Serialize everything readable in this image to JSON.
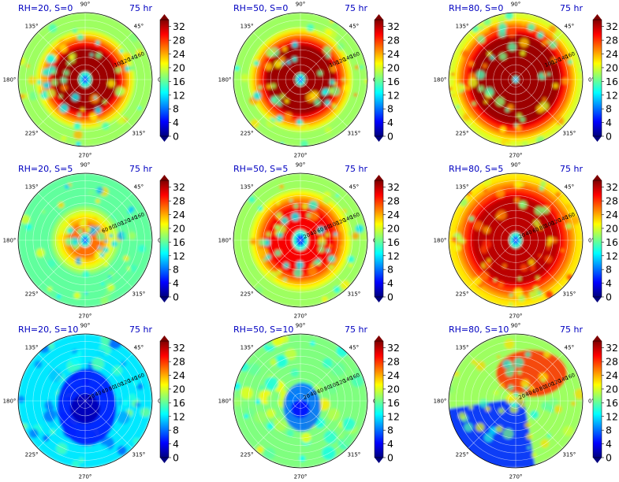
{
  "colors": {
    "title": "#0000c0",
    "jet": [
      "#00007f",
      "#0000ff",
      "#007fff",
      "#00ffff",
      "#7fff7f",
      "#ffff00",
      "#ff7f00",
      "#ff0000",
      "#7f0000"
    ]
  },
  "colorbar": {
    "ticks": [
      "0",
      "4",
      "8",
      "12",
      "16",
      "20",
      "24",
      "28",
      "32"
    ],
    "range": [
      0,
      34
    ]
  },
  "polar_axes": {
    "angle_labels": [
      "0°",
      "45°",
      "90°",
      "135°",
      "180°",
      "225°",
      "270°",
      "315°"
    ],
    "radial_range": [
      0,
      180
    ]
  },
  "chart_data": [
    {
      "type": "heatmap",
      "title_left": "RH=20, S=0",
      "title_right": "75 hr",
      "core_radius": 85,
      "core_level": 33,
      "outer_level": 18,
      "pattern": "ring",
      "eye_radius": 9,
      "radial_labels": [
        "100",
        "120",
        "140",
        "160"
      ]
    },
    {
      "type": "heatmap",
      "title_left": "RH=50, S=0",
      "title_right": "75 hr",
      "core_radius": 92,
      "core_level": 33,
      "outer_level": 18,
      "pattern": "ring",
      "eye_radius": 7,
      "radial_labels": [
        "100",
        "120",
        "140",
        "160"
      ]
    },
    {
      "type": "heatmap",
      "title_left": "RH=80, S=0",
      "title_right": "75 hr",
      "core_radius": 118,
      "core_level": 33,
      "outer_level": 20,
      "pattern": "ring",
      "eye_radius": 4,
      "radial_labels": [
        "100",
        "120",
        "140",
        "160"
      ]
    },
    {
      "type": "heatmap",
      "title_left": "RH=20, S=5",
      "title_right": "75 hr",
      "core_radius": 45,
      "core_level": 26,
      "outer_level": 16,
      "pattern": "ring",
      "eye_radius": 8,
      "radial_labels": [
        "60",
        "80",
        "100",
        "120",
        "140",
        "160"
      ]
    },
    {
      "type": "heatmap",
      "title_left": "RH=50, S=5",
      "title_right": "75 hr",
      "core_radius": 90,
      "core_level": 30,
      "outer_level": 18,
      "pattern": "ring",
      "eye_radius": 12,
      "radial_labels": [
        "20",
        "40",
        "60",
        "80",
        "100",
        "120",
        "140",
        "160"
      ]
    },
    {
      "type": "heatmap",
      "title_left": "RH=80, S=5",
      "title_right": "75 hr",
      "core_radius": 115,
      "core_level": 32,
      "outer_level": 22,
      "pattern": "ring",
      "eye_radius": 9,
      "radial_labels": [
        "20",
        "40",
        "60",
        "80",
        "100",
        "120",
        "140",
        "160"
      ]
    },
    {
      "type": "heatmap",
      "title_left": "RH=20, S=10",
      "title_right": "75 hr",
      "core_radius": 40,
      "core_level": 5,
      "outer_level": 12,
      "pattern": "dry",
      "eye_radius": 0,
      "radial_labels": [
        "20",
        "40",
        "60",
        "80",
        "100",
        "120",
        "140",
        "160"
      ]
    },
    {
      "type": "heatmap",
      "title_left": "RH=50, S=10",
      "title_right": "75 hr",
      "core_radius": 25,
      "core_level": 8,
      "outer_level": 17,
      "pattern": "dryish",
      "eye_radius": 0,
      "radial_labels": [
        "20",
        "40",
        "60",
        "80",
        "100",
        "120",
        "140",
        "160"
      ]
    },
    {
      "type": "heatmap",
      "title_left": "RH=80, S=10",
      "title_right": "75 hr",
      "core_radius": 40,
      "core_level": 28,
      "outer_level": 18,
      "pattern": "sheared",
      "eye_radius": 0,
      "radial_labels": [
        "20",
        "40",
        "60",
        "80",
        "100",
        "120",
        "140",
        "160"
      ]
    }
  ]
}
